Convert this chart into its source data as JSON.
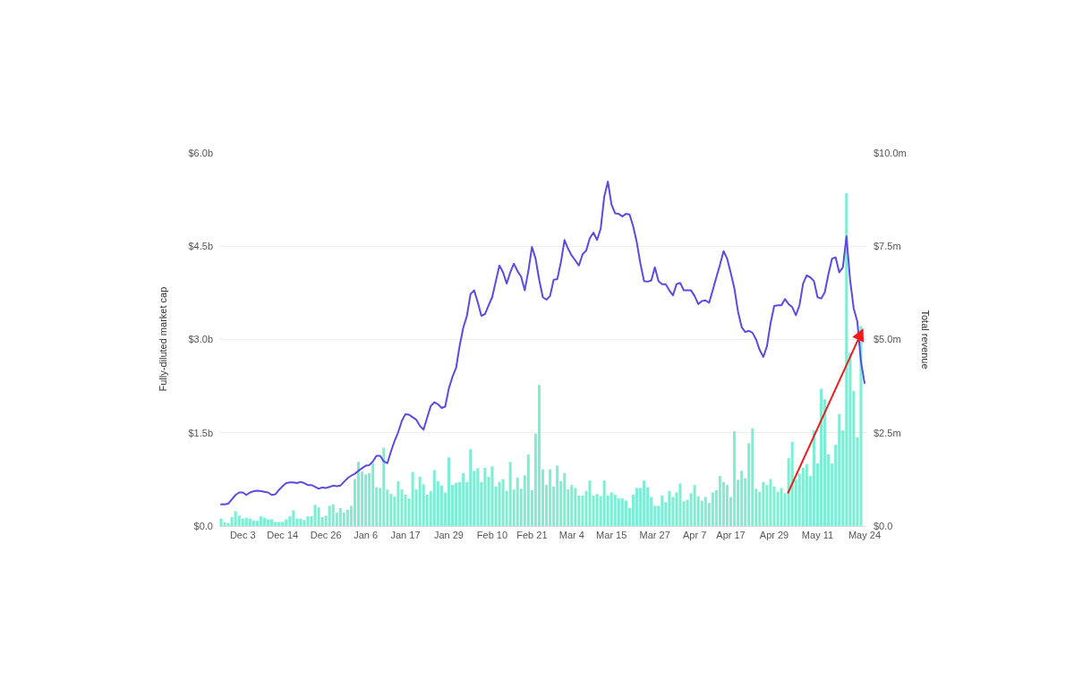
{
  "chart_data": {
    "type": "bar",
    "categories": [
      null,
      null,
      null,
      null,
      null,
      null,
      "Dec 3",
      null,
      null,
      null,
      null,
      null,
      null,
      null,
      null,
      null,
      null,
      "Dec 14",
      null,
      null,
      null,
      null,
      null,
      null,
      null,
      null,
      null,
      null,
      null,
      "Dec 26",
      null,
      null,
      null,
      null,
      null,
      null,
      null,
      null,
      null,
      null,
      "Jan 6",
      null,
      null,
      null,
      null,
      null,
      null,
      null,
      null,
      null,
      null,
      "Jan 17",
      null,
      null,
      null,
      null,
      null,
      null,
      null,
      null,
      null,
      null,
      null,
      "Jan 29",
      null,
      null,
      null,
      null,
      null,
      null,
      null,
      null,
      null,
      null,
      null,
      "Feb 10",
      null,
      null,
      null,
      null,
      null,
      null,
      null,
      null,
      null,
      null,
      "Feb 21",
      null,
      null,
      null,
      null,
      null,
      null,
      null,
      null,
      null,
      null,
      "Mar 4",
      null,
      null,
      null,
      null,
      null,
      null,
      null,
      null,
      null,
      null,
      "Mar 15",
      null,
      null,
      null,
      null,
      null,
      null,
      null,
      null,
      null,
      null,
      null,
      "Mar 27",
      null,
      null,
      null,
      null,
      null,
      null,
      null,
      null,
      null,
      null,
      "Apr 7",
      null,
      null,
      null,
      null,
      null,
      null,
      null,
      null,
      null,
      "Apr 17",
      null,
      null,
      null,
      null,
      null,
      null,
      null,
      null,
      null,
      null,
      null,
      "Apr 29",
      null,
      null,
      null,
      null,
      null,
      null,
      null,
      null,
      null,
      null,
      null,
      "May 11",
      null,
      null,
      null,
      null,
      null,
      null,
      null,
      null,
      null,
      null,
      null,
      null,
      "May 24"
    ],
    "ylim": [
      0,
      6
    ],
    "yticks": [
      {
        "value": 0,
        "label": "$0.0"
      },
      {
        "value": 1.5,
        "label": "$1.5b"
      },
      {
        "value": 3,
        "label": "$3.0b"
      },
      {
        "value": 4.5,
        "label": "$4.5b"
      },
      {
        "value": 6,
        "label": "$6.0b"
      }
    ],
    "y2lim": [
      0,
      10
    ],
    "y2ticks": [
      {
        "value": 0,
        "label": "$0.0"
      },
      {
        "value": 2.5,
        "label": "$2.5m"
      },
      {
        "value": 5,
        "label": "$5.0m"
      },
      {
        "value": 7.5,
        "label": "$7.5m"
      },
      {
        "value": 10,
        "label": "$10.0m"
      }
    ],
    "ylabel": "Fully-diluted market cap",
    "y2label": "Total revenue",
    "grid": "y",
    "series": [
      {
        "axis": "y2",
        "color": "#7eeed3",
        "values": [
          0.2,
          0.1,
          0.08,
          0.24,
          0.4,
          0.28,
          0.2,
          0.22,
          0.2,
          0.15,
          0.14,
          0.26,
          0.22,
          0.18,
          0.18,
          0.11,
          0.11,
          0.11,
          0.18,
          0.26,
          0.42,
          0.2,
          0.2,
          0.16,
          0.26,
          0.26,
          0.57,
          0.5,
          0.24,
          0.28,
          0.54,
          0.58,
          0.36,
          0.48,
          0.36,
          0.44,
          0.54,
          1.26,
          1.72,
          1.46,
          1.38,
          1.42,
          1.68,
          1.04,
          1.02,
          2.1,
          0.98,
          0.86,
          0.79,
          1.2,
          0.98,
          0.84,
          0.74,
          1.45,
          0.98,
          1.32,
          1.12,
          0.84,
          0.94,
          1.5,
          1.2,
          1.08,
          0.9,
          1.84,
          1.1,
          1.16,
          1.18,
          1.42,
          1.18,
          2.06,
          1.48,
          1.55,
          1.18,
          1.56,
          1.32,
          1.6,
          1.06,
          1.18,
          1.26,
          0.94,
          1.72,
          0.98,
          1.3,
          1.0,
          1.36,
          1.92,
          0.96,
          2.48,
          3.78,
          1.52,
          1.1,
          1.52,
          1.06,
          1.62,
          1.2,
          1.42,
          0.98,
          1.1,
          1.02,
          0.82,
          0.82,
          0.94,
          1.22,
          0.82,
          0.86,
          0.8,
          1.22,
          0.82,
          0.9,
          0.84,
          0.74,
          0.74,
          0.68,
          0.48,
          0.84,
          1.02,
          1.02,
          1.22,
          1.04,
          0.78,
          0.54,
          0.54,
          0.82,
          0.64,
          0.94,
          0.78,
          0.9,
          1.14,
          0.66,
          0.7,
          0.88,
          1.1,
          0.8,
          0.68,
          0.78,
          0.62,
          0.9,
          0.96,
          1.34,
          1.18,
          1.1,
          0.78,
          2.54,
          1.24,
          1.48,
          1.28,
          2.22,
          2.62,
          1.0,
          0.92,
          1.18,
          1.1,
          1.26,
          1.06,
          0.92,
          1.02,
          0.88,
          1.82,
          2.26,
          1.24,
          1.4,
          1.56,
          1.66,
          1.34,
          2.56,
          1.68,
          3.68,
          3.4,
          1.92,
          1.68,
          2.18,
          3.0,
          2.56,
          8.92,
          4.64,
          3.62,
          2.38,
          5.36,
          null
        ]
      },
      {
        "type": "line",
        "color": "#5a4be3",
        "values": [
          0.35,
          0.35,
          0.36,
          0.43,
          0.5,
          0.54,
          0.54,
          0.5,
          0.54,
          0.56,
          0.57,
          0.56,
          0.55,
          0.54,
          0.5,
          0.51,
          0.58,
          0.64,
          0.69,
          0.7,
          0.7,
          0.69,
          0.71,
          0.69,
          0.66,
          0.66,
          0.63,
          0.6,
          0.62,
          0.61,
          0.63,
          0.65,
          0.64,
          0.65,
          0.71,
          0.77,
          0.81,
          0.84,
          0.89,
          0.93,
          0.97,
          0.98,
          1.04,
          1.13,
          1.13,
          1.04,
          1.01,
          1.2,
          1.37,
          1.51,
          1.69,
          1.8,
          1.79,
          1.75,
          1.71,
          1.61,
          1.55,
          1.74,
          1.93,
          1.99,
          1.96,
          1.9,
          1.92,
          2.21,
          2.4,
          2.54,
          2.9,
          3.19,
          3.38,
          3.73,
          3.79,
          3.6,
          3.38,
          3.41,
          3.55,
          3.68,
          3.94,
          4.19,
          4.08,
          3.9,
          4.08,
          4.22,
          4.1,
          4.01,
          3.79,
          4.1,
          4.49,
          4.3,
          3.96,
          3.68,
          3.64,
          3.7,
          3.96,
          3.97,
          4.24,
          4.6,
          4.46,
          4.35,
          4.27,
          4.19,
          4.37,
          4.43,
          4.63,
          4.72,
          4.6,
          4.78,
          5.3,
          5.54,
          5.17,
          5.03,
          5.02,
          4.98,
          5.02,
          5.01,
          4.82,
          4.56,
          4.22,
          3.94,
          3.93,
          3.95,
          4.16,
          3.94,
          3.89,
          3.89,
          3.79,
          3.71,
          3.89,
          3.91,
          3.79,
          3.79,
          3.79,
          3.7,
          3.57,
          3.62,
          3.63,
          3.59,
          3.79,
          4.0,
          4.2,
          4.42,
          4.3,
          4.07,
          3.82,
          3.45,
          3.2,
          3.12,
          3.14,
          3.11,
          3.0,
          2.83,
          2.72,
          2.89,
          3.26,
          3.54,
          3.55,
          3.55,
          3.65,
          3.57,
          3.52,
          3.39,
          3.55,
          3.9,
          4.03,
          4.0,
          3.94,
          3.68,
          3.66,
          3.76,
          4.05,
          4.3,
          4.32,
          4.08,
          4.16,
          4.66,
          3.96,
          3.5,
          3.29,
          2.65,
          2.3
        ]
      }
    ]
  }
}
